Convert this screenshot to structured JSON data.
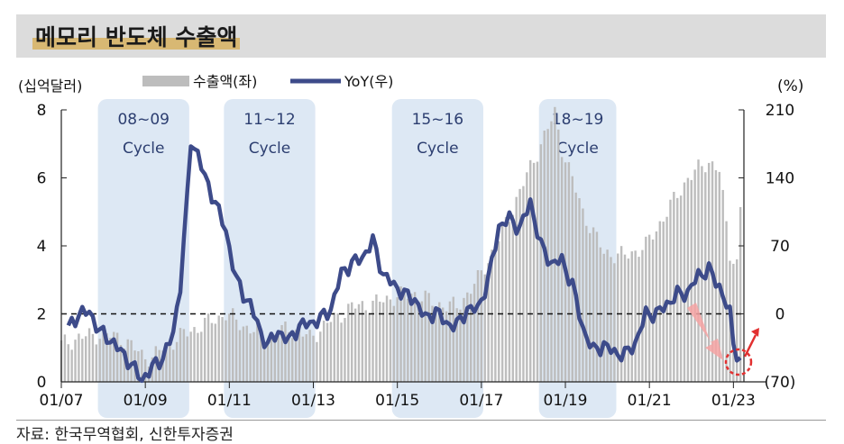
{
  "title": "메모리 반도체 수출액",
  "source": "자료: 한국무역협회, 신한투자증권",
  "chart_data": {
    "type": "bar+line",
    "left_unit": "(십억달러)",
    "right_unit": "(%)",
    "legend": [
      "수출액(좌)",
      "YoY(우)"
    ],
    "x_ticks": [
      "01/07",
      "01/09",
      "01/11",
      "01/13",
      "01/15",
      "01/17",
      "01/19",
      "01/21",
      "01/23"
    ],
    "left_ticks": [
      "0",
      "2",
      "4",
      "6",
      "8"
    ],
    "right_ticks": [
      "(70)",
      "0",
      "70",
      "140",
      "210"
    ],
    "left_ylim": [
      0,
      8
    ],
    "right_ylim": [
      -70,
      210
    ],
    "zero_reference": 0,
    "cycles": [
      {
        "label1": "08~09",
        "label2": "Cycle",
        "start": "2008-01",
        "end": "2009-12"
      },
      {
        "label1": "11~12",
        "label2": "Cycle",
        "start": "2011-01",
        "end": "2012-12"
      },
      {
        "label1": "15~16",
        "label2": "Cycle",
        "start": "2015-01",
        "end": "2016-12"
      },
      {
        "label1": "18~19",
        "label2": "Cycle",
        "start": "2018-07",
        "end": "2020-02"
      }
    ],
    "export_anchors": [
      [
        "2007-01",
        1.1
      ],
      [
        "2007-06",
        1.3
      ],
      [
        "2007-12",
        1.4
      ],
      [
        "2008-06",
        1.3
      ],
      [
        "2008-12",
        0.8
      ],
      [
        "2009-03",
        0.7
      ],
      [
        "2009-06",
        1.0
      ],
      [
        "2009-12",
        1.4
      ],
      [
        "2010-06",
        1.7
      ],
      [
        "2010-12",
        2.0
      ],
      [
        "2011-06",
        1.6
      ],
      [
        "2011-12",
        1.3
      ],
      [
        "2012-06",
        1.6
      ],
      [
        "2012-12",
        1.3
      ],
      [
        "2013-06",
        1.8
      ],
      [
        "2013-12",
        2.2
      ],
      [
        "2014-06",
        2.3
      ],
      [
        "2014-12",
        2.5
      ],
      [
        "2015-06",
        2.6
      ],
      [
        "2015-12",
        2.3
      ],
      [
        "2016-06",
        2.2
      ],
      [
        "2016-12",
        3.0
      ],
      [
        "2017-06",
        4.2
      ],
      [
        "2017-12",
        5.6
      ],
      [
        "2018-06",
        7.0
      ],
      [
        "2018-10",
        7.9
      ],
      [
        "2018-12",
        6.9
      ],
      [
        "2019-06",
        5.0
      ],
      [
        "2019-12",
        3.8
      ],
      [
        "2020-06",
        3.7
      ],
      [
        "2020-12",
        4.0
      ],
      [
        "2021-06",
        5.0
      ],
      [
        "2021-12",
        6.0
      ],
      [
        "2022-06",
        6.5
      ],
      [
        "2022-09",
        6.2
      ],
      [
        "2022-12",
        3.8
      ],
      [
        "2023-02",
        3.5
      ],
      [
        "2023-03",
        5.1
      ]
    ],
    "yoy_anchors": [
      [
        "2007-03",
        -15
      ],
      [
        "2007-06",
        0
      ],
      [
        "2007-09",
        2
      ],
      [
        "2007-12",
        -18
      ],
      [
        "2008-04",
        -30
      ],
      [
        "2008-09",
        -52
      ],
      [
        "2008-12",
        -68
      ],
      [
        "2009-03",
        -55
      ],
      [
        "2009-06",
        -45
      ],
      [
        "2009-09",
        -20
      ],
      [
        "2009-11",
        30
      ],
      [
        "2010-01",
        120
      ],
      [
        "2010-02",
        178
      ],
      [
        "2010-04",
        165
      ],
      [
        "2010-06",
        140
      ],
      [
        "2010-09",
        115
      ],
      [
        "2010-12",
        85
      ],
      [
        "2011-03",
        35
      ],
      [
        "2011-05",
        20
      ],
      [
        "2011-07",
        10
      ],
      [
        "2011-10",
        -20
      ],
      [
        "2011-12",
        -32
      ],
      [
        "2012-03",
        -18
      ],
      [
        "2012-06",
        -28
      ],
      [
        "2012-09",
        -12
      ],
      [
        "2012-12",
        -10
      ],
      [
        "2013-03",
        -5
      ],
      [
        "2013-06",
        5
      ],
      [
        "2013-09",
        42
      ],
      [
        "2013-12",
        52
      ],
      [
        "2014-03",
        58
      ],
      [
        "2014-06",
        75
      ],
      [
        "2014-09",
        40
      ],
      [
        "2014-12",
        30
      ],
      [
        "2015-03",
        20
      ],
      [
        "2015-06",
        15
      ],
      [
        "2015-09",
        -5
      ],
      [
        "2015-12",
        3
      ],
      [
        "2016-03",
        -10
      ],
      [
        "2016-06",
        -12
      ],
      [
        "2016-09",
        5
      ],
      [
        "2016-12",
        5
      ],
      [
        "2017-03",
        35
      ],
      [
        "2017-06",
        90
      ],
      [
        "2017-09",
        98
      ],
      [
        "2017-12",
        88
      ],
      [
        "2018-03",
        115
      ],
      [
        "2018-06",
        70
      ],
      [
        "2018-09",
        52
      ],
      [
        "2018-12",
        55
      ],
      [
        "2019-03",
        30
      ],
      [
        "2019-06",
        -15
      ],
      [
        "2019-09",
        -38
      ],
      [
        "2019-12",
        -32
      ],
      [
        "2020-03",
        -40
      ],
      [
        "2020-06",
        -42
      ],
      [
        "2020-09",
        -30
      ],
      [
        "2020-12",
        0
      ],
      [
        "2021-03",
        0
      ],
      [
        "2021-06",
        10
      ],
      [
        "2021-09",
        20
      ],
      [
        "2021-12",
        22
      ],
      [
        "2022-03",
        40
      ],
      [
        "2022-06",
        45
      ],
      [
        "2022-09",
        28
      ],
      [
        "2022-12",
        0
      ],
      [
        "2023-01",
        -30
      ],
      [
        "2023-03",
        -50
      ]
    ]
  }
}
